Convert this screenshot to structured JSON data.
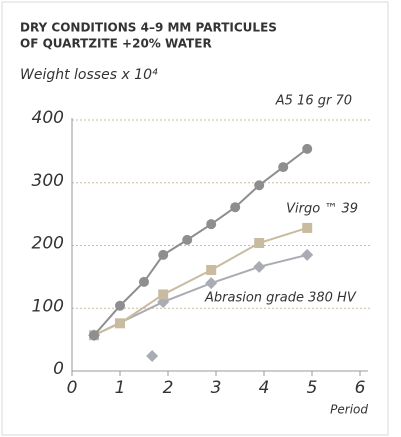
{
  "chart_data": {
    "type": "line",
    "title": [
      "DRY CONDITIONS 4–9 MM PARTICULES",
      "OF QUARTZITE +20% WATER"
    ],
    "subtitle": "Weight losses x 10⁴",
    "x_label": "Period",
    "xlim": [
      0,
      6
    ],
    "xticks": [
      0,
      1,
      2,
      3,
      4,
      5,
      6
    ],
    "ylim": [
      0,
      400
    ],
    "yticks": [
      0,
      100,
      200,
      300,
      400
    ],
    "grid": true,
    "series": [
      {
        "name": "Abrasion grade 380 HV",
        "color": "#a9adb3",
        "marker": "diamond",
        "x": [
          0.46,
          1.9,
          2.9,
          3.9,
          4.9
        ],
        "values": [
          57,
          110,
          140,
          166,
          185
        ]
      },
      {
        "color": "#a9adb3",
        "marker": "diamond",
        "line": false,
        "x": [
          1.67
        ],
        "values": [
          24
        ]
      },
      {
        "name": "Virgo ™ 39",
        "color": "#c9bba0",
        "marker": "square",
        "x": [
          0.46,
          1,
          1.9,
          2.9,
          3.9,
          4.9
        ],
        "values": [
          57,
          76,
          122,
          161,
          204,
          228
        ]
      },
      {
        "name": "A5 16 gr 70",
        "color": "#8e8e90",
        "marker": "circle",
        "x": [
          0.46,
          1,
          1.5,
          1.9,
          2.4,
          2.9,
          3.4,
          3.9,
          4.4,
          4.9
        ],
        "values": [
          57,
          104,
          142,
          185,
          209,
          234,
          261,
          296,
          325,
          354
        ]
      }
    ]
  }
}
